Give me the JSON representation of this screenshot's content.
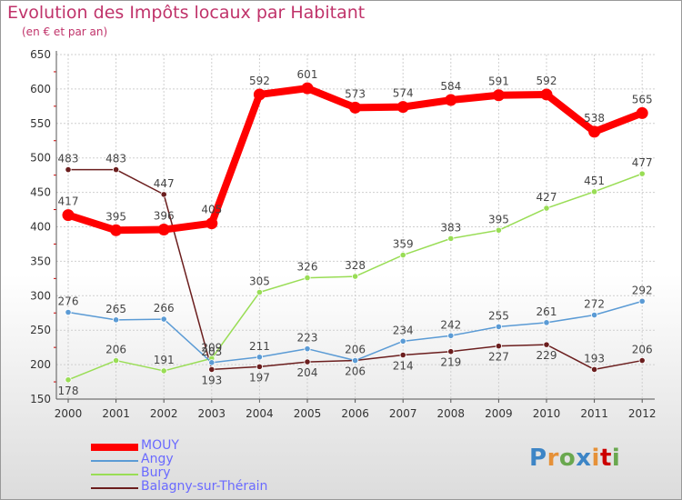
{
  "header": {
    "title": "Evolution des Impôts locaux par Habitant",
    "subtitle": "(en € et par an)"
  },
  "colors": {
    "title": "#c0336a",
    "legend_text": "#6a6aff",
    "grid": "#cfcfcf"
  },
  "logo": {
    "text": "Proxiti"
  },
  "chart_data": {
    "type": "line",
    "title": "Evolution des Impôts locaux par Habitant",
    "subtitle": "(en € et par an)",
    "x": [
      "2000",
      "2001",
      "2002",
      "2003",
      "2004",
      "2005",
      "2006",
      "2007",
      "2008",
      "2009",
      "2010",
      "2011",
      "2012"
    ],
    "ylim": [
      150,
      650
    ],
    "yticks": [
      150,
      200,
      250,
      300,
      350,
      400,
      450,
      500,
      550,
      600,
      650
    ],
    "grid": true,
    "legend_position": "bottom-left",
    "series": [
      {
        "name": "MOUY",
        "color": "#ff0000",
        "values": [
          417,
          395,
          396,
          405,
          592,
          601,
          573,
          574,
          584,
          591,
          592,
          538,
          565
        ]
      },
      {
        "name": "Angy",
        "color": "#5b9bd5",
        "values": [
          276,
          265,
          266,
          203,
          211,
          223,
          206,
          234,
          242,
          255,
          261,
          272,
          292
        ]
      },
      {
        "name": "Bury",
        "color": "#99dd55",
        "values": [
          178,
          206,
          191,
          209,
          305,
          326,
          328,
          359,
          383,
          395,
          427,
          451,
          477
        ]
      },
      {
        "name": "Balagny-sur-Thérain",
        "color": "#6b1e1e",
        "values": [
          483,
          483,
          447,
          193,
          197,
          204,
          206,
          214,
          219,
          227,
          229,
          193,
          206
        ]
      }
    ]
  }
}
